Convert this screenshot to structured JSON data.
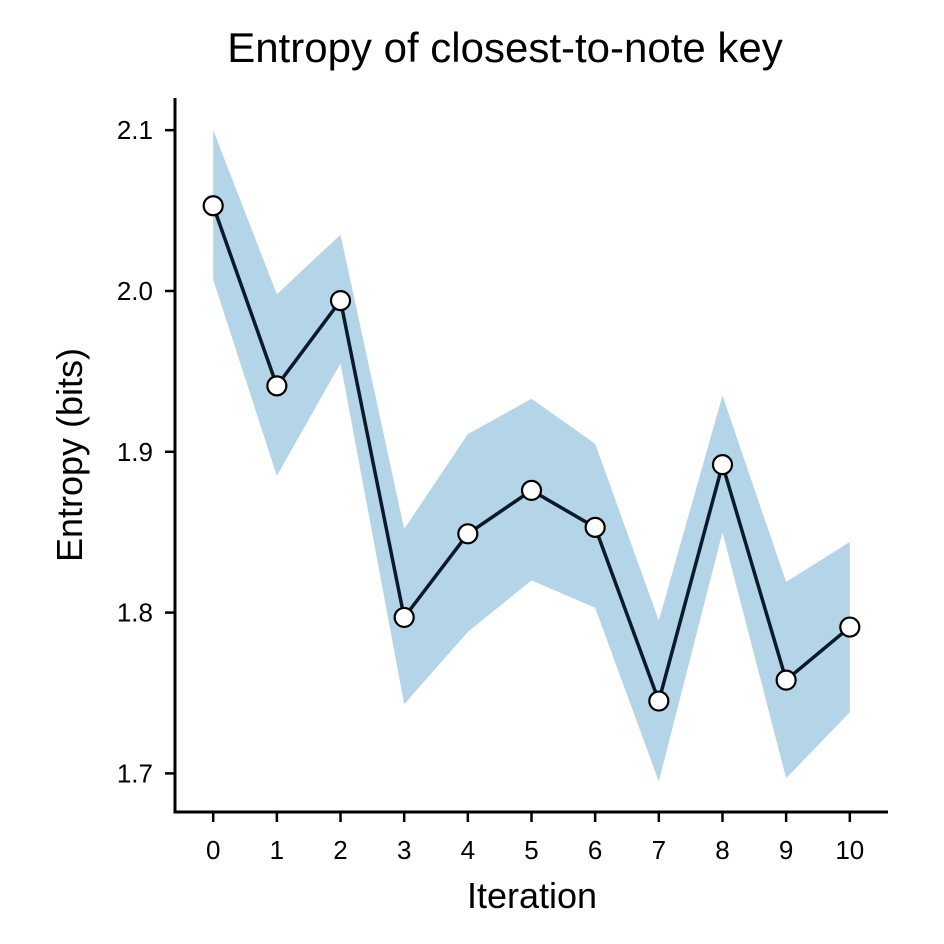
{
  "chart_data": {
    "type": "line",
    "title": "Entropy of closest-to-note key",
    "xlabel": "Iteration",
    "ylabel": "Entropy (bits)",
    "x": [
      0,
      1,
      2,
      3,
      4,
      5,
      6,
      7,
      8,
      9,
      10
    ],
    "xticks": [
      "0",
      "1",
      "2",
      "3",
      "4",
      "5",
      "6",
      "7",
      "8",
      "9",
      "10"
    ],
    "yticks": [
      "1.7",
      "1.8",
      "1.9",
      "2.0",
      "2.1"
    ],
    "ylim": [
      1.676,
      2.12
    ],
    "xlim": [
      -0.6,
      10.6
    ],
    "series": [
      {
        "values": [
          2.053,
          1.941,
          1.994,
          1.797,
          1.849,
          1.876,
          1.853,
          1.745,
          1.892,
          1.758,
          1.791
        ],
        "lower": [
          2.007,
          1.885,
          1.955,
          1.743,
          1.788,
          1.82,
          1.803,
          1.695,
          1.85,
          1.697,
          1.738
        ],
        "upper": [
          2.1,
          1.998,
          2.035,
          1.852,
          1.911,
          1.933,
          1.905,
          1.795,
          1.935,
          1.819,
          1.844
        ]
      }
    ],
    "grid": false,
    "colors": {
      "band": "#b3d5e7",
      "line": "#0a1a2a",
      "marker_fill": "#ffffff",
      "axis": "#000000"
    }
  }
}
